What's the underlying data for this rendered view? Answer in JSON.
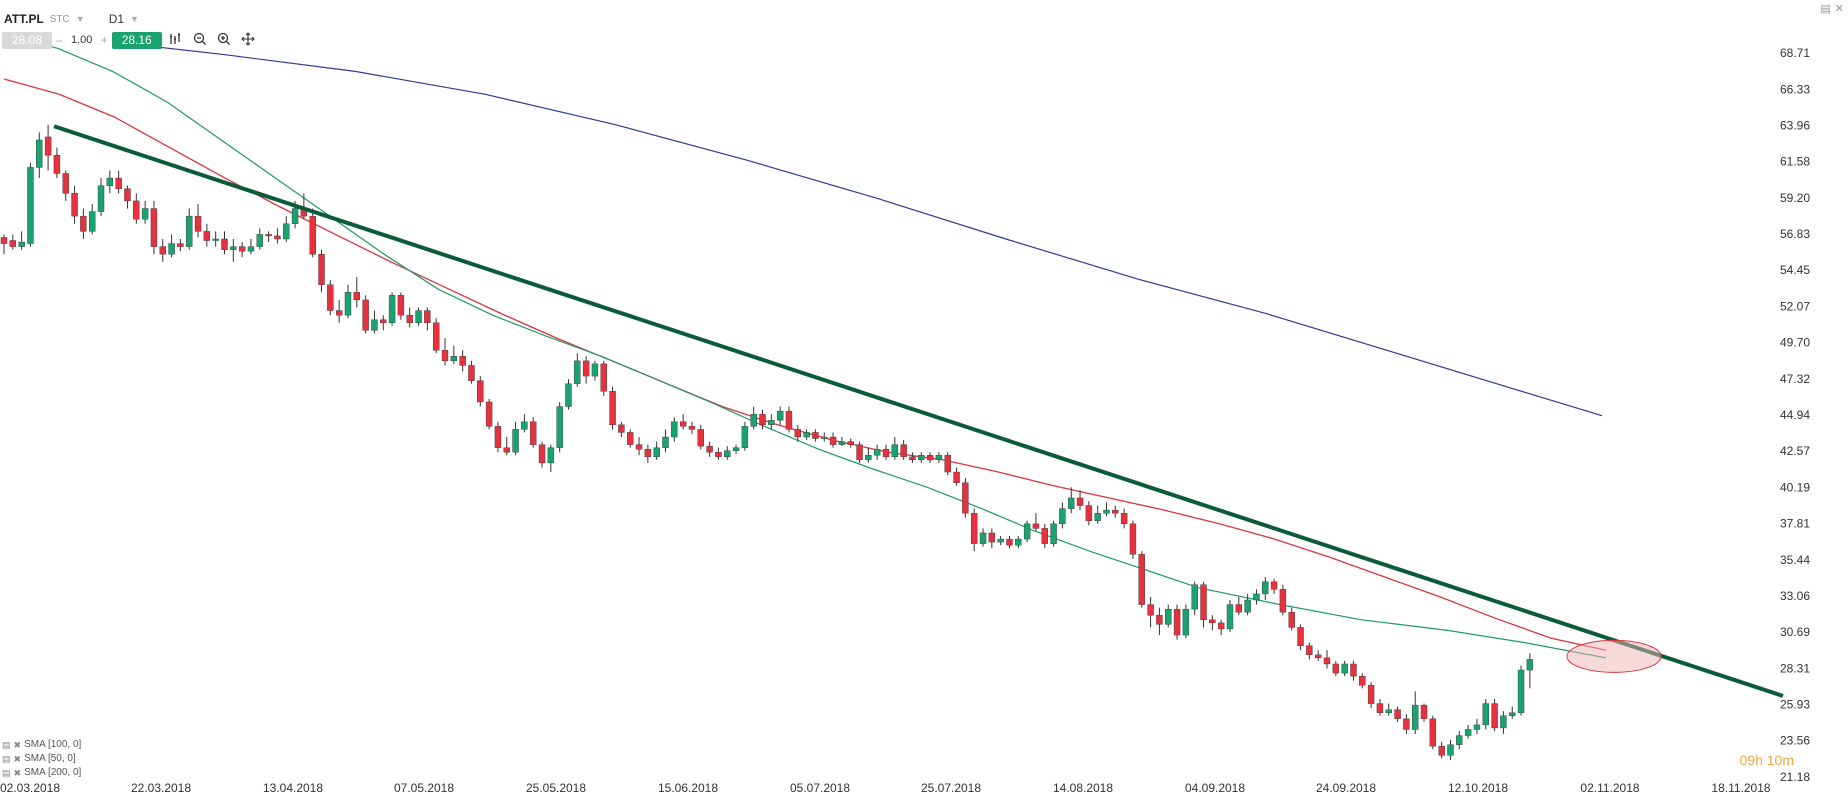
{
  "header": {
    "symbol": "ATT.PL",
    "instrument_type": "STC",
    "timeframe": "D1"
  },
  "trade": {
    "bid": "28.08",
    "quantity": "1.00",
    "ask": "28.16",
    "minus": "–",
    "plus": "+"
  },
  "tools": [
    "chart-type-icon",
    "zoom-out-icon",
    "zoom-in-icon",
    "crosshair-icon"
  ],
  "legend": [
    {
      "label": "SMA [100, 0]"
    },
    {
      "label": "SMA [50, 0]"
    },
    {
      "label": "SMA [200, 0]"
    }
  ],
  "countdown": "09h 10m",
  "colors": {
    "up": "#1aa36f",
    "down": "#e5323e",
    "sma100": "#1f9a6a",
    "sma50": "#d9363e",
    "sma200": "#2e3c8c",
    "trendline": "#0b5a3a",
    "highlight": "#f0b4b4"
  },
  "chart_data": {
    "type": "candlestick",
    "y_ticks": [
      "68.71",
      "66.33",
      "63.96",
      "61.58",
      "59.20",
      "56.83",
      "54.45",
      "52.07",
      "49.70",
      "47.32",
      "44.94",
      "42.57",
      "40.19",
      "37.81",
      "35.44",
      "33.06",
      "30.69",
      "28.31",
      "25.93",
      "23.56",
      "21.18"
    ],
    "ylim": [
      21.18,
      68.71
    ],
    "x_tick_labels": [
      "02.03.2018",
      "22.03.2018",
      "13.04.2018",
      "07.05.2018",
      "25.05.2018",
      "15.06.2018",
      "05.07.2018",
      "25.07.2018",
      "14.08.2018",
      "04.09.2018",
      "24.09.2018",
      "12.10.2018",
      "02.11.2018",
      "18.11.2018"
    ],
    "candles": [
      [
        56.6,
        56.2,
        56.8,
        55.5
      ],
      [
        56.4,
        56.0,
        56.8,
        55.8
      ],
      [
        56.0,
        56.3,
        57.0,
        55.8
      ],
      [
        56.2,
        61.2,
        61.5,
        56.0
      ],
      [
        61.2,
        63.0,
        63.5,
        60.5
      ],
      [
        63.2,
        62.0,
        64.0,
        61.0
      ],
      [
        62.0,
        60.8,
        62.5,
        60.5
      ],
      [
        60.8,
        59.5,
        61.0,
        59.0
      ],
      [
        59.5,
        58.0,
        60.0,
        57.5
      ],
      [
        58.0,
        57.0,
        58.5,
        56.5
      ],
      [
        57.0,
        58.3,
        58.8,
        56.8
      ],
      [
        58.3,
        60.0,
        60.5,
        58.0
      ],
      [
        60.0,
        60.5,
        61.0,
        59.5
      ],
      [
        60.5,
        59.8,
        61.0,
        59.5
      ],
      [
        59.8,
        59.0,
        60.0,
        58.5
      ],
      [
        59.0,
        57.8,
        59.5,
        57.5
      ],
      [
        57.8,
        58.5,
        59.0,
        57.5
      ],
      [
        58.5,
        56.0,
        59.0,
        55.5
      ],
      [
        56.0,
        55.5,
        56.5,
        55.0
      ],
      [
        55.5,
        56.2,
        56.8,
        55.3
      ],
      [
        56.2,
        56.0,
        56.5,
        55.7
      ],
      [
        56.0,
        58.0,
        58.5,
        55.8
      ],
      [
        58.0,
        57.0,
        58.8,
        56.6
      ],
      [
        57.0,
        56.4,
        57.5,
        56.0
      ],
      [
        56.4,
        56.5,
        57.0,
        56.0
      ],
      [
        56.5,
        55.8,
        57.0,
        55.5
      ],
      [
        55.8,
        56.0,
        56.5,
        55.0
      ],
      [
        56.0,
        55.7,
        56.3,
        55.3
      ],
      [
        55.7,
        56.0,
        56.5,
        55.5
      ],
      [
        56.0,
        56.8,
        57.2,
        55.8
      ],
      [
        56.8,
        56.7,
        57.0,
        56.3
      ],
      [
        56.7,
        56.5,
        57.2,
        56.2
      ],
      [
        56.5,
        57.5,
        58.0,
        56.3
      ],
      [
        57.5,
        58.5,
        59.0,
        57.2
      ],
      [
        58.5,
        58.0,
        59.5,
        57.8
      ],
      [
        58.0,
        55.5,
        58.5,
        55.3
      ],
      [
        55.5,
        53.5,
        55.8,
        53.0
      ],
      [
        53.5,
        51.8,
        53.8,
        51.5
      ],
      [
        51.8,
        51.5,
        52.5,
        51.0
      ],
      [
        51.5,
        53.0,
        53.5,
        51.3
      ],
      [
        53.0,
        52.5,
        54.0,
        52.0
      ],
      [
        52.5,
        50.5,
        52.8,
        50.3
      ],
      [
        50.5,
        51.2,
        51.8,
        50.3
      ],
      [
        51.2,
        51.0,
        51.5,
        50.5
      ],
      [
        51.0,
        52.8,
        53.0,
        50.8
      ],
      [
        52.8,
        51.5,
        53.0,
        51.2
      ],
      [
        51.5,
        51.0,
        52.0,
        50.7
      ],
      [
        51.0,
        51.8,
        52.0,
        50.8
      ],
      [
        51.8,
        51.0,
        52.0,
        50.5
      ],
      [
        51.0,
        49.2,
        51.3,
        49.0
      ],
      [
        49.2,
        48.5,
        50.0,
        48.2
      ],
      [
        48.5,
        48.8,
        49.5,
        48.3
      ],
      [
        48.8,
        48.2,
        49.2,
        47.8
      ],
      [
        48.2,
        47.2,
        48.5,
        47.0
      ],
      [
        47.2,
        45.8,
        47.5,
        45.5
      ],
      [
        45.8,
        44.2,
        46.0,
        44.0
      ],
      [
        44.2,
        42.8,
        44.5,
        42.5
      ],
      [
        42.8,
        42.5,
        43.5,
        42.3
      ],
      [
        42.5,
        44.0,
        44.5,
        42.3
      ],
      [
        44.0,
        44.5,
        45.0,
        43.8
      ],
      [
        44.5,
        43.0,
        44.8,
        42.8
      ],
      [
        43.0,
        41.8,
        43.2,
        41.5
      ],
      [
        41.8,
        42.8,
        43.0,
        41.2
      ],
      [
        42.8,
        45.5,
        45.8,
        42.5
      ],
      [
        45.5,
        47.0,
        47.3,
        45.3
      ],
      [
        47.0,
        48.5,
        49.0,
        46.8
      ],
      [
        48.5,
        47.5,
        48.8,
        47.0
      ],
      [
        47.5,
        48.3,
        48.5,
        47.2
      ],
      [
        48.3,
        46.5,
        48.5,
        46.2
      ],
      [
        46.5,
        44.3,
        46.8,
        44.0
      ],
      [
        44.3,
        43.8,
        44.5,
        43.5
      ],
      [
        43.8,
        43.0,
        44.0,
        42.8
      ],
      [
        43.0,
        42.7,
        43.5,
        42.3
      ],
      [
        42.7,
        42.2,
        43.0,
        41.8
      ],
      [
        42.2,
        42.8,
        43.2,
        42.0
      ],
      [
        42.8,
        43.5,
        44.0,
        42.5
      ],
      [
        43.5,
        44.5,
        44.8,
        43.2
      ],
      [
        44.5,
        44.2,
        45.0,
        44.0
      ],
      [
        44.2,
        44.0,
        44.5,
        43.7
      ],
      [
        44.0,
        42.9,
        44.3,
        42.7
      ],
      [
        42.9,
        42.5,
        43.2,
        42.2
      ],
      [
        42.5,
        42.2,
        42.8,
        42.0
      ],
      [
        42.2,
        42.6,
        42.9,
        42.0
      ],
      [
        42.6,
        42.8,
        43.0,
        42.4
      ],
      [
        42.8,
        44.2,
        44.5,
        42.6
      ],
      [
        44.2,
        45.0,
        45.5,
        44.0
      ],
      [
        45.0,
        44.3,
        45.3,
        44.0
      ],
      [
        44.3,
        44.6,
        45.0,
        44.0
      ],
      [
        44.6,
        45.2,
        45.5,
        44.3
      ],
      [
        45.2,
        44.0,
        45.5,
        43.8
      ],
      [
        44.0,
        43.5,
        44.3,
        43.2
      ],
      [
        43.5,
        43.8,
        44.0,
        43.3
      ],
      [
        43.8,
        43.4,
        44.0,
        43.2
      ],
      [
        43.4,
        43.5,
        43.8,
        43.2
      ],
      [
        43.5,
        43.0,
        43.8,
        42.8
      ],
      [
        43.0,
        43.2,
        43.5,
        42.9
      ],
      [
        43.2,
        43.0,
        43.4,
        42.8
      ],
      [
        43.0,
        42.0,
        43.2,
        41.8
      ],
      [
        42.0,
        42.3,
        42.8,
        41.8
      ],
      [
        42.3,
        42.7,
        43.0,
        42.0
      ],
      [
        42.7,
        42.2,
        43.0,
        42.0
      ],
      [
        42.2,
        43.0,
        43.5,
        42.0
      ],
      [
        43.0,
        42.2,
        43.3,
        42.0
      ],
      [
        42.2,
        42.0,
        42.5,
        41.8
      ],
      [
        42.0,
        42.3,
        42.5,
        41.8
      ],
      [
        42.3,
        42.0,
        42.5,
        41.8
      ],
      [
        42.0,
        42.3,
        42.5,
        41.8
      ],
      [
        42.3,
        41.2,
        42.5,
        41.0
      ],
      [
        41.2,
        40.5,
        41.5,
        40.3
      ],
      [
        40.5,
        38.5,
        40.8,
        38.2
      ],
      [
        38.5,
        36.5,
        38.8,
        36.0
      ],
      [
        36.5,
        37.2,
        37.5,
        36.3
      ],
      [
        37.2,
        36.6,
        37.5,
        36.2
      ],
      [
        36.6,
        36.8,
        37.0,
        36.4
      ],
      [
        36.8,
        36.4,
        37.0,
        36.2
      ],
      [
        36.4,
        36.8,
        37.0,
        36.2
      ],
      [
        36.8,
        37.8,
        38.0,
        36.6
      ],
      [
        37.8,
        37.5,
        38.5,
        37.3
      ],
      [
        37.5,
        36.5,
        37.8,
        36.2
      ],
      [
        36.5,
        37.8,
        38.0,
        36.3
      ],
      [
        37.8,
        38.8,
        39.2,
        37.5
      ],
      [
        38.8,
        39.5,
        40.2,
        38.5
      ],
      [
        39.5,
        39.0,
        40.0,
        38.7
      ],
      [
        39.0,
        38.0,
        39.3,
        37.7
      ],
      [
        38.0,
        38.5,
        39.0,
        37.8
      ],
      [
        38.5,
        38.7,
        39.2,
        38.3
      ],
      [
        38.7,
        38.5,
        39.0,
        38.2
      ],
      [
        38.5,
        37.8,
        38.8,
        37.5
      ],
      [
        37.8,
        35.8,
        38.0,
        35.5
      ],
      [
        35.8,
        32.5,
        36.0,
        32.3
      ],
      [
        32.5,
        31.8,
        33.0,
        31.0
      ],
      [
        31.8,
        31.2,
        32.3,
        30.5
      ],
      [
        31.2,
        32.2,
        32.5,
        31.0
      ],
      [
        32.2,
        30.5,
        32.5,
        30.2
      ],
      [
        30.5,
        32.2,
        32.5,
        30.3
      ],
      [
        32.2,
        33.8,
        34.0,
        31.8
      ],
      [
        33.8,
        31.5,
        34.0,
        31.0
      ],
      [
        31.5,
        31.3,
        31.8,
        30.8
      ],
      [
        31.3,
        30.9,
        31.5,
        30.5
      ],
      [
        30.9,
        32.5,
        32.8,
        30.7
      ],
      [
        32.5,
        32.0,
        33.0,
        31.8
      ],
      [
        32.0,
        32.8,
        33.2,
        31.8
      ],
      [
        32.8,
        33.2,
        33.5,
        32.5
      ],
      [
        33.2,
        34.0,
        34.3,
        32.8
      ],
      [
        34.0,
        33.5,
        34.2,
        33.2
      ],
      [
        33.5,
        32.0,
        33.8,
        31.8
      ],
      [
        32.0,
        31.0,
        32.3,
        30.8
      ],
      [
        31.0,
        29.8,
        31.2,
        29.5
      ],
      [
        29.8,
        29.2,
        30.0,
        28.9
      ],
      [
        29.2,
        29.0,
        29.5,
        28.8
      ],
      [
        29.0,
        28.6,
        29.5,
        28.3
      ],
      [
        28.6,
        28.0,
        28.8,
        27.8
      ],
      [
        28.0,
        28.6,
        28.8,
        27.8
      ],
      [
        28.6,
        27.8,
        28.8,
        27.5
      ],
      [
        27.8,
        27.2,
        28.0,
        27.0
      ],
      [
        27.2,
        26.0,
        27.4,
        25.7
      ],
      [
        26.0,
        25.4,
        26.3,
        25.2
      ],
      [
        25.4,
        25.6,
        26.0,
        25.2
      ],
      [
        25.6,
        25.0,
        25.8,
        24.8
      ],
      [
        25.0,
        24.3,
        25.3,
        24.0
      ],
      [
        24.3,
        25.9,
        26.8,
        24.0
      ],
      [
        25.9,
        25.0,
        26.0,
        24.8
      ],
      [
        25.0,
        23.2,
        25.2,
        23.0
      ],
      [
        23.2,
        22.6,
        23.5,
        22.4
      ],
      [
        22.6,
        23.3,
        23.6,
        22.3
      ],
      [
        23.3,
        23.9,
        24.2,
        23.0
      ],
      [
        23.9,
        24.3,
        24.6,
        23.7
      ],
      [
        24.3,
        24.6,
        25.0,
        24.0
      ],
      [
        24.6,
        26.0,
        26.3,
        24.3
      ],
      [
        26.0,
        24.4,
        26.3,
        24.2
      ],
      [
        24.4,
        25.2,
        25.5,
        24.0
      ],
      [
        25.2,
        25.4,
        25.8,
        25.0
      ],
      [
        25.4,
        28.2,
        28.5,
        25.2
      ],
      [
        28.2,
        28.9,
        29.3,
        27.0
      ]
    ],
    "sma50": [
      [
        0,
        67.0
      ],
      [
        10,
        66.0
      ],
      [
        20,
        64.5
      ],
      [
        30,
        62.5
      ],
      [
        40,
        60.5
      ],
      [
        50,
        58.6
      ],
      [
        60,
        56.8
      ],
      [
        70,
        55.0
      ],
      [
        80,
        53.3
      ],
      [
        90,
        51.6
      ],
      [
        100,
        50.0
      ],
      [
        110,
        48.5
      ],
      [
        120,
        47.0
      ],
      [
        130,
        45.5
      ],
      [
        140,
        44.3
      ],
      [
        150,
        43.3
      ],
      [
        160,
        42.5
      ],
      [
        170,
        42.0
      ],
      [
        180,
        41.2
      ],
      [
        190,
        40.3
      ],
      [
        200,
        39.5
      ],
      [
        210,
        38.7
      ],
      [
        220,
        37.8
      ],
      [
        230,
        36.8
      ],
      [
        240,
        35.6
      ],
      [
        250,
        34.3
      ],
      [
        260,
        33.0
      ],
      [
        270,
        31.6
      ],
      [
        280,
        30.3
      ],
      [
        290,
        29.5
      ]
    ],
    "sma100": [
      [
        0,
        70.0
      ],
      [
        20,
        69.0
      ],
      [
        40,
        67.5
      ],
      [
        60,
        65.5
      ],
      [
        80,
        63.0
      ],
      [
        100,
        60.5
      ],
      [
        120,
        58.0
      ],
      [
        140,
        55.5
      ],
      [
        160,
        53.2
      ],
      [
        180,
        51.5
      ],
      [
        200,
        50.1
      ],
      [
        220,
        48.8
      ],
      [
        240,
        47.3
      ],
      [
        260,
        45.8
      ],
      [
        280,
        44.2
      ],
      [
        300,
        42.7
      ],
      [
        320,
        41.4
      ],
      [
        340,
        40.2
      ],
      [
        360,
        38.8
      ],
      [
        380,
        37.3
      ],
      [
        400,
        36.0
      ],
      [
        420,
        34.8
      ],
      [
        440,
        33.6
      ],
      [
        470,
        32.5
      ],
      [
        500,
        31.5
      ],
      [
        532,
        30.8
      ],
      [
        560,
        30.0
      ],
      [
        590,
        29.0
      ]
    ],
    "sma200": [
      [
        117,
        69.4
      ],
      [
        200,
        68.6
      ],
      [
        300,
        67.5
      ],
      [
        400,
        66.0
      ],
      [
        500,
        64.0
      ],
      [
        600,
        61.7
      ],
      [
        700,
        59.2
      ],
      [
        800,
        56.5
      ],
      [
        900,
        53.9
      ],
      [
        1000,
        51.6
      ],
      [
        1100,
        49.0
      ],
      [
        1200,
        46.4
      ],
      [
        1258,
        44.9
      ]
    ],
    "trendline": {
      "x0_index": 4.5,
      "y0": 63.9,
      "x1_index": 209,
      "y1": 26.5
    },
    "highlight": {
      "x_index": 182,
      "y": 29.1
    }
  }
}
